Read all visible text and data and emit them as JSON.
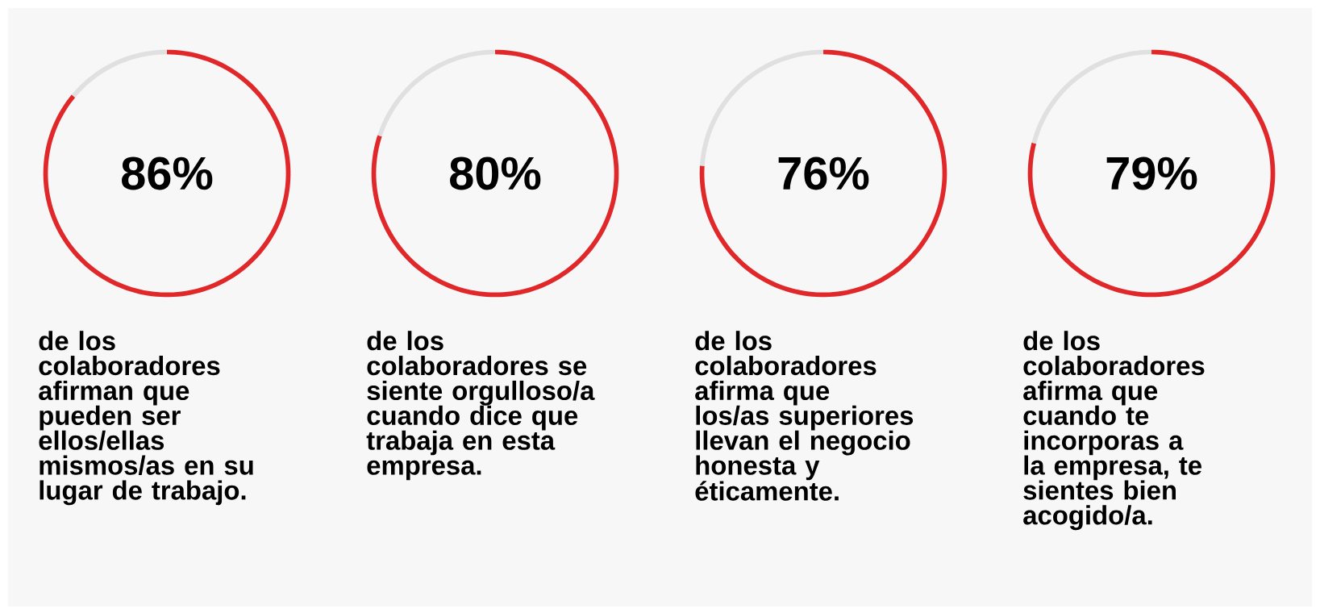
{
  "chart_data": [
    {
      "type": "donut",
      "categories": [
        null,
        null
      ],
      "values": [
        86,
        14
      ],
      "colors": [
        "#e0282a",
        "#e0e0e0"
      ],
      "value_labels": [
        "86%",
        null
      ],
      "annotations": [
        "de los colaboradores afirman que pueden ser ellos/ellas mismos/as en su lugar de trabajo."
      ]
    },
    {
      "type": "donut",
      "categories": [
        null,
        null
      ],
      "values": [
        80,
        20
      ],
      "colors": [
        "#e0282a",
        "#e0e0e0"
      ],
      "value_labels": [
        "80%",
        null
      ],
      "annotations": [
        "de los colaboradores se siente orgulloso/a cuando dice que trabaja en esta empresa."
      ]
    },
    {
      "type": "donut",
      "categories": [
        null,
        null
      ],
      "values": [
        76,
        24
      ],
      "colors": [
        "#e0282a",
        "#e0e0e0"
      ],
      "value_labels": [
        "76%",
        null
      ],
      "annotations": [
        "de los colaboradores afirma que los/as superiores llevan el negocio honesta y éticamente."
      ]
    },
    {
      "type": "donut",
      "categories": [
        null,
        null
      ],
      "values": [
        79,
        21
      ],
      "colors": [
        "#e0282a",
        "#e0e0e0"
      ],
      "value_labels": [
        "79%",
        null
      ],
      "annotations": [
        "de los colaboradores afirma que cuando te incorporas a la empresa, te sientes bien acogido/a."
      ]
    }
  ]
}
